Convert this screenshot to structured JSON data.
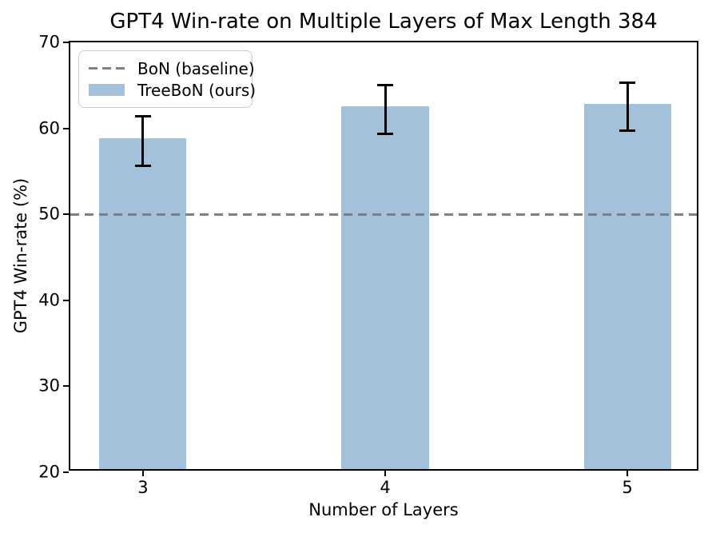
{
  "chart_data": {
    "type": "bar",
    "title": "GPT4 Win-rate on Multiple Layers of Max Length 384",
    "xlabel": "Number of Layers",
    "ylabel": "GPT4 Win-rate (%)",
    "categories": [
      "3",
      "4",
      "5"
    ],
    "series": [
      {
        "name": "TreeBoN (ours)",
        "values": [
          58.5,
          62.2,
          62.5
        ],
        "error_bars": [
          2.9,
          2.8,
          2.8
        ]
      }
    ],
    "baseline": {
      "name": "BoN (baseline)",
      "value": 50
    },
    "ylim": [
      20,
      70
    ],
    "yticks": [
      20,
      30,
      40,
      50,
      60,
      70
    ],
    "xlim": [
      -0.3,
      2.3
    ],
    "bar_width_units": 0.36,
    "grid": false,
    "legend_position": "upper left",
    "colors": {
      "bar_fill": "#a3c1db",
      "baseline_line": "#7f7f7f",
      "error_bar": "#000000",
      "axis": "#000000",
      "background": "#ffffff"
    },
    "legend": {
      "entries": [
        {
          "label": "BoN (baseline)",
          "sample": "dashed-line"
        },
        {
          "label": "TreeBoN (ours)",
          "sample": "filled-patch"
        }
      ]
    }
  }
}
